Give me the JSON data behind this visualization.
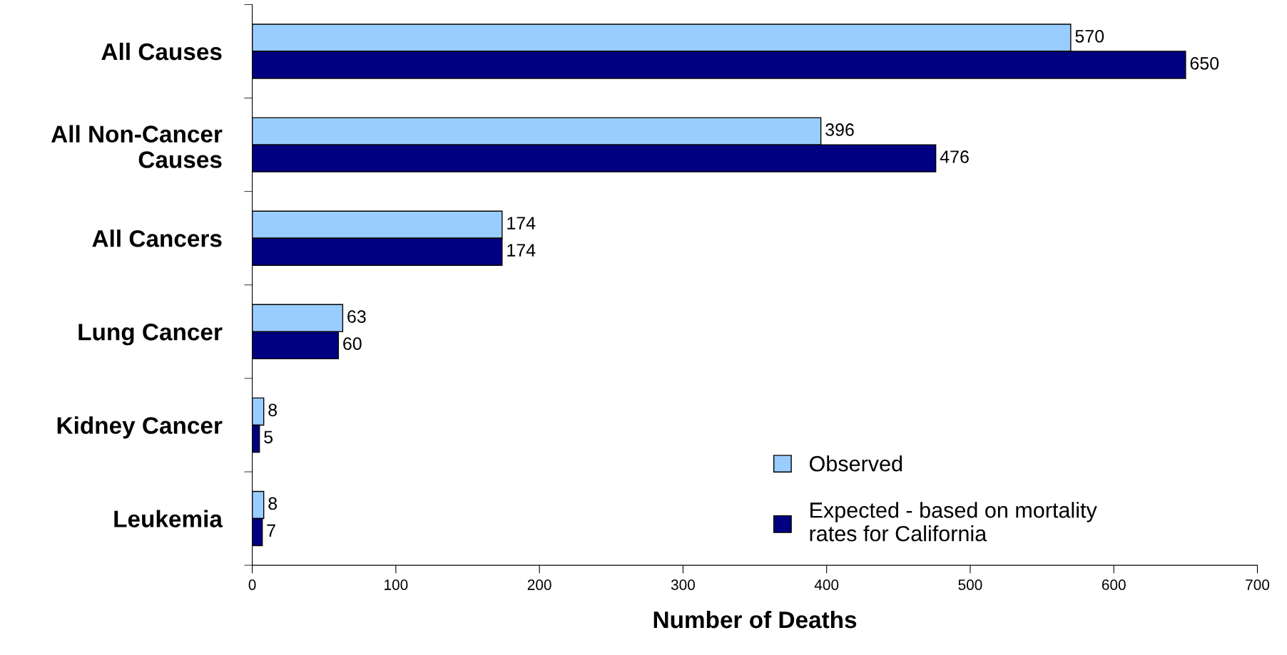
{
  "chart_data": {
    "type": "bar",
    "orientation": "horizontal",
    "xlabel": "Number of Deaths",
    "categories": [
      "All Causes",
      "All Non-Cancer\nCauses",
      "All Cancers",
      "Lung Cancer",
      "Kidney Cancer",
      "Leukemia"
    ],
    "series": [
      {
        "name": "Observed",
        "color": "#99ccff",
        "values": [
          570,
          396,
          174,
          63,
          8,
          8
        ]
      },
      {
        "name": "Expected - based on mortality\nrates for California",
        "color": "#000080",
        "values": [
          650,
          476,
          174,
          60,
          5,
          7
        ]
      }
    ],
    "xlim": [
      0,
      700
    ],
    "xticks": [
      0,
      100,
      200,
      300,
      400,
      500,
      600,
      700
    ],
    "data_labels": true,
    "grid": false,
    "legend": "bottom right"
  }
}
